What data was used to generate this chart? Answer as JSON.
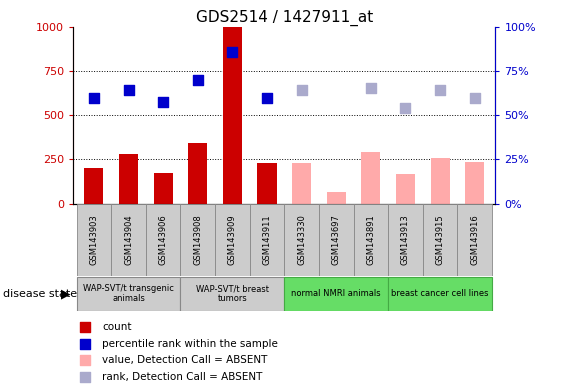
{
  "title": "GDS2514 / 1427911_at",
  "samples": [
    "GSM143903",
    "GSM143904",
    "GSM143906",
    "GSM143908",
    "GSM143909",
    "GSM143911",
    "GSM143330",
    "GSM143697",
    "GSM143891",
    "GSM143913",
    "GSM143915",
    "GSM143916"
  ],
  "count_values": [
    200,
    280,
    170,
    340,
    1000,
    230,
    null,
    null,
    null,
    null,
    null,
    null
  ],
  "absent_values": [
    null,
    null,
    null,
    null,
    null,
    null,
    230,
    65,
    290,
    165,
    255,
    235
  ],
  "rank_present": [
    60,
    64,
    57.5,
    70,
    85.5,
    60,
    null,
    null,
    null,
    null,
    null,
    null
  ],
  "rank_absent": [
    null,
    null,
    null,
    null,
    null,
    null,
    64.5,
    null,
    65.5,
    54,
    64.5,
    60
  ],
  "groups": [
    {
      "label": "WAP-SVT/t transgenic\nanimals",
      "start": 0,
      "end": 3,
      "color": "#cccccc",
      "border": "#888888"
    },
    {
      "label": "WAP-SVT/t breast\ntumors",
      "start": 3,
      "end": 6,
      "color": "#cccccc",
      "border": "#888888"
    },
    {
      "label": "normal NMRI animals",
      "start": 6,
      "end": 9,
      "color": "#66dd66",
      "border": "#44aa44"
    },
    {
      "label": "breast cancer cell lines",
      "start": 9,
      "end": 12,
      "color": "#66dd66",
      "border": "#44aa44"
    }
  ],
  "bar_color_present": "#cc0000",
  "bar_color_absent": "#ffaaaa",
  "dot_color_present": "#0000cc",
  "dot_color_absent": "#aaaacc",
  "ylim_left": [
    0,
    1000
  ],
  "ylim_right": [
    0,
    100
  ],
  "yticks_left": [
    0,
    250,
    500,
    750,
    1000
  ],
  "ytick_labels_left": [
    "0",
    "250",
    "500",
    "750",
    "1000"
  ],
  "ytick_labels_right": [
    "0%",
    "25%",
    "50%",
    "75%",
    "100%"
  ],
  "bar_width": 0.55,
  "dot_size": 55
}
